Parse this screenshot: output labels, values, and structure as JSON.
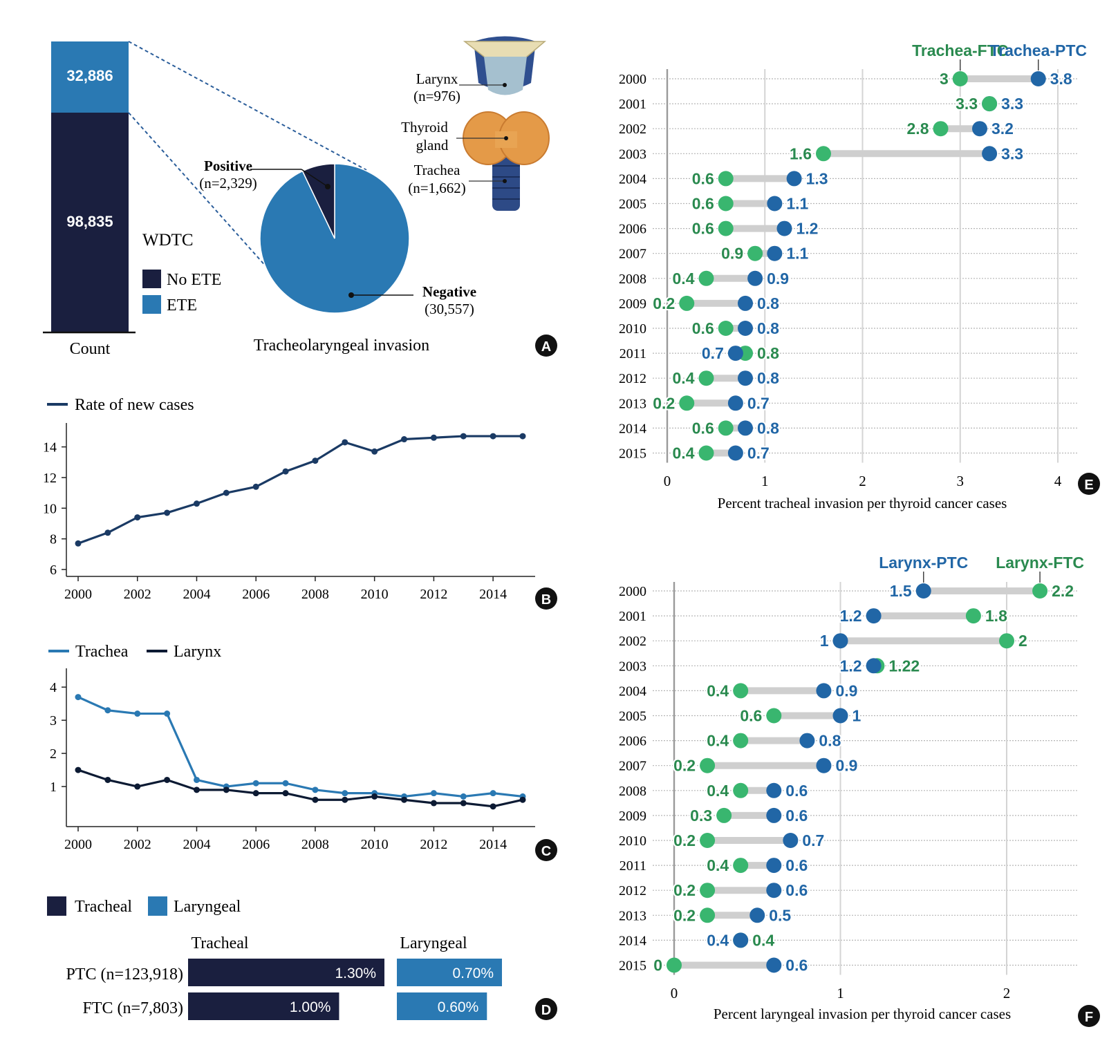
{
  "colors": {
    "navy": "#1a1f3f",
    "blue": "#2a79b3",
    "dot_blue": "#2166a6",
    "green": "#39b66f",
    "green_text": "#2a8a4f",
    "gray_bar": "#cfcfcf",
    "panel_letter_bg": "#111111"
  },
  "panel_a": {
    "letter": "A",
    "bar_axis_label": "Count",
    "wdtc_title": "WDTC",
    "stack": [
      {
        "label": "No ETE",
        "value": 98835,
        "display": "98,835"
      },
      {
        "label": "ETE",
        "value": 32886,
        "display": "32,886"
      }
    ],
    "pie_title": "Tracheolaryngeal invasion",
    "pie": [
      {
        "label": "Positive",
        "n_text": "(n=2,329)",
        "value": 2329
      },
      {
        "label": "Negative",
        "n_text": "(30,557)",
        "value": 30557
      }
    ],
    "anatomy": {
      "larynx": "Larynx",
      "larynx_n": "(n=976)",
      "thyroid_line1": "Thyroid",
      "thyroid_line2": "gland",
      "trachea": "Trachea",
      "trachea_n": "(n=1,662)"
    }
  },
  "panel_b": {
    "letter": "B",
    "chart_data": {
      "type": "line",
      "title": "",
      "legend": [
        "Rate of new cases"
      ],
      "x": [
        2000,
        2001,
        2002,
        2003,
        2004,
        2005,
        2006,
        2007,
        2008,
        2009,
        2010,
        2011,
        2012,
        2013,
        2014,
        2015
      ],
      "series": [
        {
          "name": "Rate of new cases",
          "values": [
            7.7,
            8.4,
            9.4,
            9.7,
            10.3,
            11.0,
            11.4,
            12.4,
            13.1,
            14.3,
            13.7,
            14.5,
            14.6,
            14.7,
            14.7,
            14.7
          ]
        }
      ],
      "xticks": [
        2000,
        2002,
        2004,
        2006,
        2008,
        2010,
        2012,
        2014
      ],
      "yticks": [
        6,
        8,
        10,
        12,
        14
      ],
      "ylim": [
        6,
        15.2
      ]
    }
  },
  "panel_c": {
    "letter": "C",
    "chart_data": {
      "type": "line",
      "x": [
        2000,
        2001,
        2002,
        2003,
        2004,
        2005,
        2006,
        2007,
        2008,
        2009,
        2010,
        2011,
        2012,
        2013,
        2014,
        2015
      ],
      "series": [
        {
          "name": "Trachea",
          "values": [
            3.7,
            3.3,
            3.2,
            3.2,
            1.2,
            1.0,
            1.1,
            1.1,
            0.9,
            0.8,
            0.8,
            0.7,
            0.8,
            0.7,
            0.8,
            0.7
          ]
        },
        {
          "name": "Larynx",
          "values": [
            1.5,
            1.2,
            1.0,
            1.2,
            0.9,
            0.9,
            0.8,
            0.8,
            0.6,
            0.6,
            0.7,
            0.6,
            0.5,
            0.5,
            0.4,
            0.6
          ]
        }
      ],
      "xticks": [
        2000,
        2002,
        2004,
        2006,
        2008,
        2010,
        2012,
        2014
      ],
      "yticks": [
        1,
        2,
        3,
        4
      ],
      "ylim": [
        0,
        4.4
      ]
    }
  },
  "panel_d": {
    "letter": "D",
    "chart_data": {
      "type": "bar",
      "legend": [
        "Tracheal",
        "Laryngeal"
      ],
      "columns": [
        "Tracheal",
        "Laryngeal"
      ],
      "rows": [
        {
          "label": "PTC (n=123,918)",
          "tracheal": 1.3,
          "tracheal_label": "1.30%",
          "laryngeal": 0.7,
          "laryngeal_label": "0.70%"
        },
        {
          "label": "FTC (n=7,803)",
          "tracheal": 1.0,
          "tracheal_label": "1.00%",
          "laryngeal": 0.6,
          "laryngeal_label": "0.60%"
        }
      ]
    }
  },
  "panel_e": {
    "letter": "E",
    "chart_data": {
      "type": "dumbbell",
      "xlabel": "Percent tracheal invasion per thyroid cancer cases",
      "xticks": [
        0,
        1,
        2,
        3,
        4
      ],
      "xlim": [
        0,
        4
      ],
      "legend": [
        "Trachea-FTC",
        "Trachea-PTC"
      ],
      "years": [
        2000,
        2001,
        2002,
        2003,
        2004,
        2005,
        2006,
        2007,
        2008,
        2009,
        2010,
        2011,
        2012,
        2013,
        2014,
        2015
      ],
      "ftc": [
        3,
        3.3,
        2.8,
        1.6,
        0.6,
        0.6,
        0.6,
        0.9,
        0.4,
        0.2,
        0.6,
        0.8,
        0.4,
        0.2,
        0.6,
        0.4
      ],
      "ftc_labels": [
        "3",
        "3.3",
        "2.8",
        "1.6",
        "0.6",
        "0.6",
        "0.6",
        "0.9",
        "0.4",
        "0.2",
        "0.6",
        "0.8",
        "0.4",
        "0.2",
        "0.6",
        "0.4"
      ],
      "ptc": [
        3.8,
        3.3,
        3.2,
        3.3,
        1.3,
        1.1,
        1.2,
        1.1,
        0.9,
        0.8,
        0.8,
        0.7,
        0.8,
        0.7,
        0.8,
        0.7
      ],
      "ptc_labels": [
        "3.8",
        "3.3",
        "3.2",
        "3.3",
        "1.3",
        "1.1",
        "1.2",
        "1.1",
        "0.9",
        "0.8",
        "0.8",
        "0.7",
        "0.8",
        "0.7",
        "0.8",
        "0.7"
      ]
    }
  },
  "panel_f": {
    "letter": "F",
    "chart_data": {
      "type": "dumbbell",
      "xlabel": "Percent laryngeal invasion per thyroid cancer cases",
      "xticks": [
        0,
        1,
        2
      ],
      "xlim": [
        0,
        2.42
      ],
      "legend": [
        "Larynx-PTC",
        "Larynx-FTC"
      ],
      "years": [
        2000,
        2001,
        2002,
        2003,
        2004,
        2005,
        2006,
        2007,
        2008,
        2009,
        2010,
        2011,
        2012,
        2013,
        2014,
        2015
      ],
      "ptc": [
        1.5,
        1.2,
        1,
        1.2,
        0.9,
        1,
        0.8,
        0.9,
        0.6,
        0.6,
        0.7,
        0.6,
        0.6,
        0.5,
        0.4,
        0.6
      ],
      "ptc_labels": [
        "1.5",
        "1.2",
        "1",
        "1.2",
        "0.9",
        "1",
        "0.8",
        "0.9",
        "0.6",
        "0.6",
        "0.7",
        "0.6",
        "0.6",
        "0.5",
        "0.4",
        "0.6"
      ],
      "ftc": [
        2.2,
        1.8,
        2,
        1.22,
        0.4,
        0.6,
        0.4,
        0.2,
        0.4,
        0.3,
        0.2,
        0.4,
        0.2,
        0.2,
        0.4,
        0
      ],
      "ftc_labels": [
        "2.2",
        "1.8",
        "2",
        "1.22",
        "0.4",
        "0.6",
        "0.4",
        "0.2",
        "0.4",
        "0.3",
        "0.2",
        "0.4",
        "0.2",
        "0.2",
        "0.4",
        "0"
      ]
    }
  }
}
